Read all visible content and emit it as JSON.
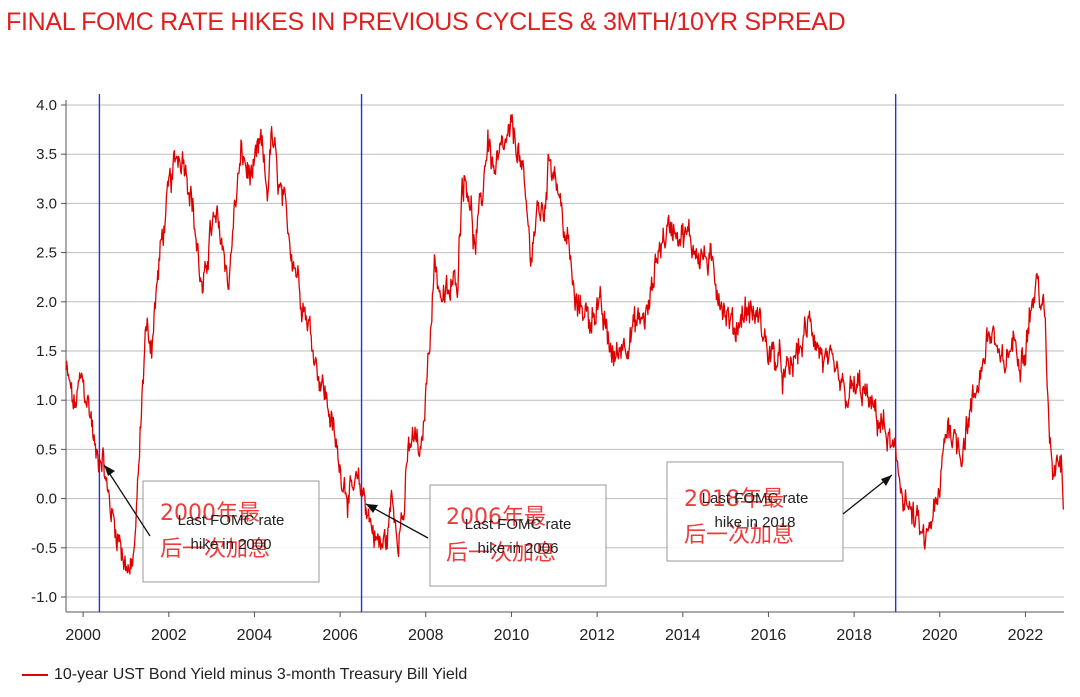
{
  "title": "FINAL FOMC RATE HIKES IN PREVIOUS CYCLES & 3MTH/10YR SPREAD",
  "legend_label": "10-year UST Bond Yield minus 3-month Treasury Bill Yield",
  "colors": {
    "title": "#e02020",
    "series": "#e00000",
    "vline": "#2233dd",
    "grid": "#bdbdbd"
  },
  "annotations": [
    {
      "id": "2000",
      "zh": "2000年最后一次加息",
      "en": "Last FOMC rate hike in 2000"
    },
    {
      "id": "2006",
      "zh": "2006年最后一次加息",
      "en": "Last FOMC rate hike in 2006"
    },
    {
      "id": "2018",
      "zh": "2018年最后一次加息",
      "en": "Last FOMC rate hike in 2018"
    }
  ],
  "chart_data": {
    "type": "line",
    "title": "FINAL FOMC RATE HIKES IN PREVIOUS CYCLES & 3MTH/10YR SPREAD",
    "xlabel": "",
    "ylabel": "",
    "xlim": [
      1999.6,
      2022.9
    ],
    "ylim": [
      -1.0,
      4.0
    ],
    "x_ticks": [
      2000,
      2002,
      2004,
      2006,
      2008,
      2010,
      2012,
      2014,
      2016,
      2018,
      2020,
      2022
    ],
    "y_ticks": [
      4.0,
      3.5,
      3.0,
      2.5,
      2.0,
      1.5,
      1.0,
      0.5,
      0.0,
      -0.5,
      -1.0
    ],
    "grid": true,
    "legend": "bottom-left",
    "vertical_lines": [
      2000.38,
      2006.5,
      2018.97
    ],
    "series": [
      {
        "name": "10-year UST Bond Yield minus 3-month Treasury Bill Yield",
        "x": [
          1999.6,
          1999.7,
          1999.8,
          1999.95,
          2000.1,
          2000.2,
          2000.3,
          2000.45,
          2000.55,
          2000.7,
          2000.85,
          2000.95,
          2001.05,
          2001.12,
          2001.2,
          2001.3,
          2001.45,
          2001.6,
          2001.8,
          2002.0,
          2002.2,
          2002.35,
          2002.5,
          2002.65,
          2002.8,
          2002.95,
          2003.1,
          2003.25,
          2003.4,
          2003.55,
          2003.7,
          2003.85,
          2004.0,
          2004.15,
          2004.3,
          2004.4,
          2004.55,
          2004.75,
          2005.0,
          2005.25,
          2005.5,
          2005.75,
          2005.95,
          2006.1,
          2006.25,
          2006.4,
          2006.55,
          2006.75,
          2006.95,
          2007.1,
          2007.2,
          2007.35,
          2007.5,
          2007.6,
          2007.75,
          2007.9,
          2008.05,
          2008.2,
          2008.4,
          2008.6,
          2008.75,
          2008.85,
          2009.0,
          2009.15,
          2009.3,
          2009.45,
          2009.6,
          2009.8,
          2010.0,
          2010.15,
          2010.3,
          2010.45,
          2010.6,
          2010.75,
          2010.9,
          2011.05,
          2011.2,
          2011.35,
          2011.5,
          2011.65,
          2011.8,
          2012.0,
          2012.2,
          2012.4,
          2012.6,
          2012.8,
          2013.0,
          2013.2,
          2013.4,
          2013.6,
          2013.8,
          2014.0,
          2014.2,
          2014.4,
          2014.6,
          2014.8,
          2015.0,
          2015.2,
          2015.4,
          2015.6,
          2015.8,
          2016.0,
          2016.2,
          2016.4,
          2016.6,
          2016.8,
          2017.0,
          2017.2,
          2017.4,
          2017.6,
          2017.8,
          2018.0,
          2018.2,
          2018.4,
          2018.6,
          2018.8,
          2019.0,
          2019.2,
          2019.35,
          2019.5,
          2019.65,
          2019.8,
          2019.95,
          2020.0,
          2020.1,
          2020.2,
          2020.35,
          2020.5,
          2020.65,
          2020.8,
          2020.95,
          2021.1,
          2021.25,
          2021.4,
          2021.55,
          2021.7,
          2021.85,
          2022.0,
          2022.15,
          2022.3,
          2022.45,
          2022.55,
          2022.65,
          2022.75,
          2022.85,
          2022.9
        ],
        "values": [
          1.3,
          1.1,
          0.9,
          1.2,
          1.0,
          0.8,
          0.4,
          0.5,
          0.1,
          -0.2,
          -0.4,
          -0.6,
          -0.7,
          -0.8,
          -0.5,
          0.3,
          1.7,
          1.6,
          2.5,
          3.1,
          3.5,
          3.5,
          3.2,
          2.6,
          2.0,
          2.7,
          2.8,
          2.6,
          2.2,
          3.0,
          3.5,
          3.3,
          3.3,
          3.6,
          3.1,
          3.7,
          3.2,
          2.8,
          2.3,
          1.8,
          1.3,
          0.9,
          0.4,
          0.2,
          0.0,
          0.1,
          0.05,
          -0.3,
          -0.5,
          -0.4,
          0.0,
          -0.3,
          -0.1,
          0.5,
          0.6,
          0.4,
          1.4,
          2.4,
          2.0,
          2.1,
          2.3,
          3.3,
          3.2,
          2.5,
          3.0,
          3.7,
          3.3,
          3.5,
          3.7,
          3.6,
          3.1,
          2.5,
          2.9,
          2.9,
          3.5,
          3.3,
          2.8,
          2.5,
          1.9,
          2.0,
          1.8,
          2.0,
          1.7,
          1.4,
          1.6,
          1.7,
          1.8,
          1.9,
          2.5,
          2.7,
          2.8,
          2.7,
          2.6,
          2.5,
          2.4,
          2.2,
          1.9,
          1.7,
          1.9,
          1.9,
          1.8,
          1.5,
          1.4,
          1.2,
          1.4,
          1.6,
          1.8,
          1.5,
          1.3,
          1.2,
          1.0,
          1.1,
          1.1,
          0.9,
          0.8,
          0.6,
          0.3,
          0.0,
          -0.2,
          -0.3,
          -0.5,
          -0.2,
          -0.1,
          0.0,
          0.6,
          0.8,
          0.6,
          0.5,
          0.8,
          1.0,
          1.3,
          1.6,
          1.7,
          1.3,
          1.4,
          1.6,
          1.5,
          1.6,
          2.0,
          2.2,
          1.8,
          0.7,
          0.3,
          0.5,
          0.4,
          -0.1
        ]
      }
    ]
  }
}
